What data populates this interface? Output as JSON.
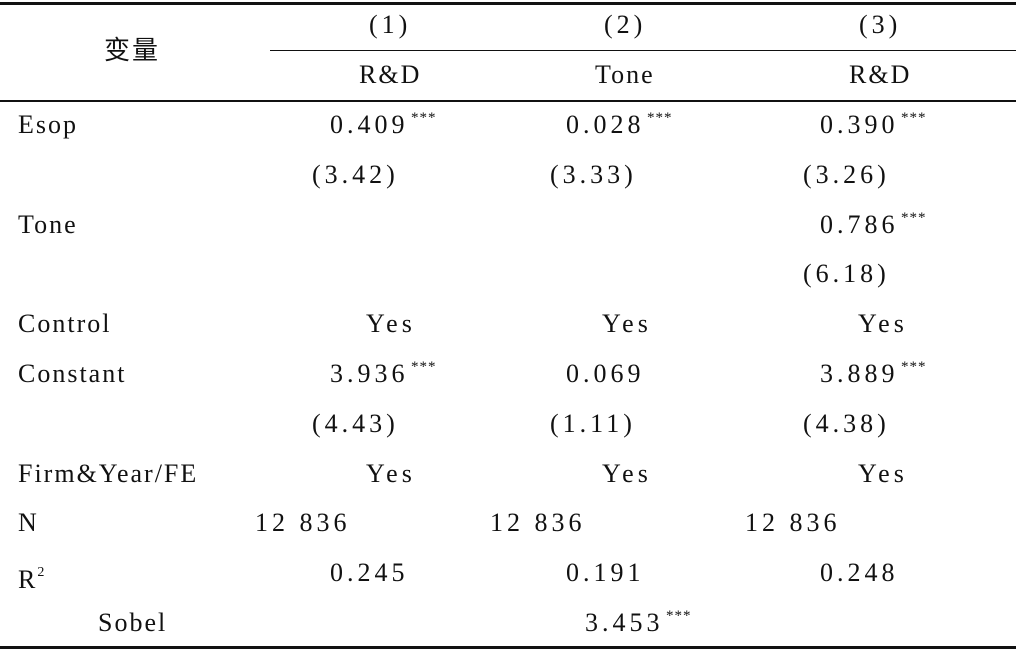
{
  "header": {
    "variable": "变量",
    "columns": [
      {
        "number": "(1)",
        "name": "R&D"
      },
      {
        "number": "(2)",
        "name": "Tone"
      },
      {
        "number": "(3)",
        "name": "R&D"
      }
    ]
  },
  "table": {
    "rows": [
      {
        "label": "Esop",
        "cells": [
          {
            "text": "0.409",
            "stars": "***"
          },
          {
            "text": "0.028",
            "stars": "***"
          },
          {
            "text": "0.390",
            "stars": "***"
          }
        ]
      },
      {
        "label": null,
        "cells": [
          {
            "text": "(3.42)"
          },
          {
            "text": "(3.33)"
          },
          {
            "text": "(3.26)"
          }
        ]
      },
      {
        "label": "Tone",
        "cells": [
          null,
          null,
          {
            "text": "0.786",
            "stars": "***"
          }
        ]
      },
      {
        "label": null,
        "cells": [
          null,
          null,
          {
            "text": "(6.18)"
          }
        ]
      },
      {
        "label": "Control",
        "cells": [
          {
            "text": "Yes"
          },
          {
            "text": "Yes"
          },
          {
            "text": "Yes"
          }
        ]
      },
      {
        "label": "Constant",
        "cells": [
          {
            "text": "3.936",
            "stars": "***"
          },
          {
            "text": "0.069"
          },
          {
            "text": "3.889",
            "stars": "***"
          }
        ]
      },
      {
        "label": null,
        "cells": [
          {
            "text": "(4.43)"
          },
          {
            "text": "(1.11)"
          },
          {
            "text": "(4.38)"
          }
        ]
      },
      {
        "label": "Firm&Year/FE",
        "cells": [
          {
            "text": "Yes"
          },
          {
            "text": "Yes"
          },
          {
            "text": "Yes"
          }
        ]
      },
      {
        "label": "N",
        "cells": [
          {
            "text": "12 836"
          },
          {
            "text": "12 836"
          },
          {
            "text": "12 836"
          }
        ]
      },
      {
        "label": "R",
        "label_sup": "2",
        "cells": [
          {
            "text": "0.245"
          },
          {
            "text": "0.191"
          },
          {
            "text": "0.248"
          }
        ]
      },
      {
        "label": "Sobel",
        "cells": [
          null,
          {
            "text": "3.453",
            "stars": "***"
          },
          null
        ]
      }
    ]
  }
}
